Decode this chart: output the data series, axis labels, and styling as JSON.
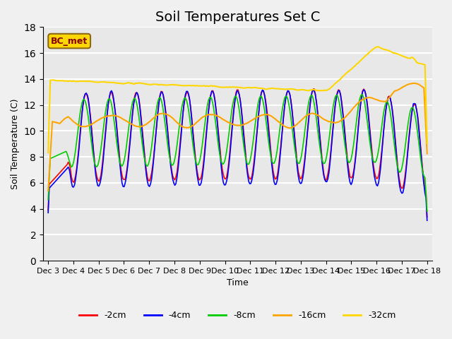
{
  "title": "Soil Temperatures Set C",
  "xlabel": "Time",
  "ylabel": "Soil Temperature (C)",
  "ylim": [
    0,
    18
  ],
  "yticks": [
    0,
    2,
    4,
    6,
    8,
    10,
    12,
    14,
    16,
    18
  ],
  "x_labels": [
    "Dec 3",
    "Dec 4",
    "Dec 5",
    "Dec 6",
    "Dec 7",
    "Dec 8",
    "Dec 9",
    "Dec 10",
    "Dec 11",
    "Dec 12",
    "Dec 13",
    "Dec 14",
    "Dec 15",
    "Dec 16",
    "Dec 17",
    "Dec 18"
  ],
  "annotation_text": "BC_met",
  "annotation_box_color": "#FFD700",
  "annotation_text_color": "#8B0000",
  "series_colors": {
    "-2cm": "#FF0000",
    "-4cm": "#0000FF",
    "-8cm": "#00CC00",
    "-16cm": "#FFA500",
    "-32cm": "#FFD700"
  },
  "background_color": "#E8E8E8",
  "plot_area_color": "#F5F5F5",
  "grid_color": "#FFFFFF",
  "title_fontsize": 14
}
